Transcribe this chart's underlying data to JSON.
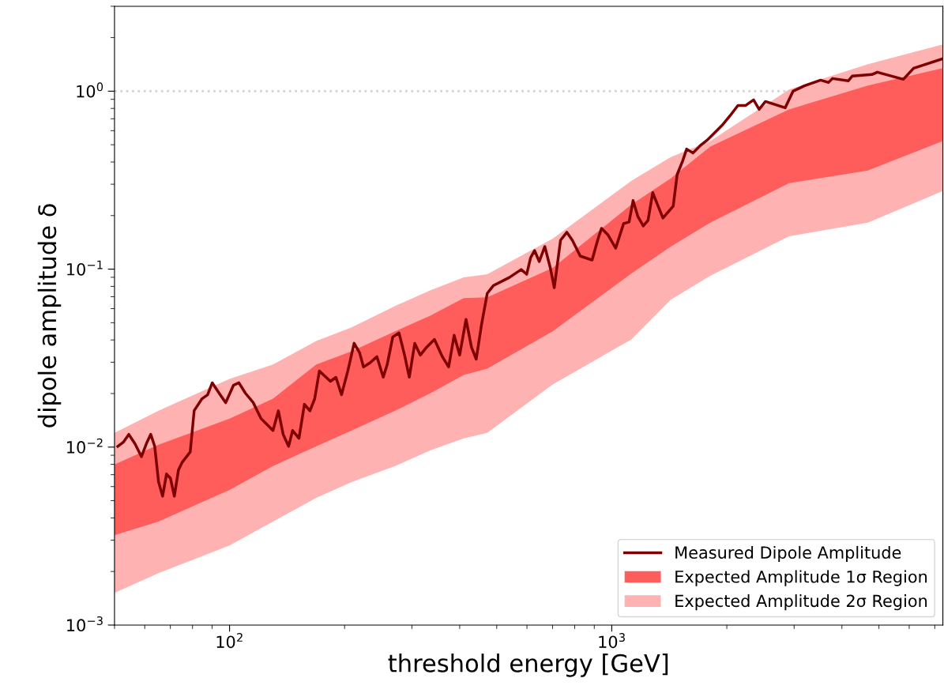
{
  "chart_data": {
    "type": "line",
    "xlabel": "threshold energy [GeV]",
    "ylabel": "dipole amplitude δ",
    "log": "xy",
    "xlim": [
      50,
      7350
    ],
    "ylim": [
      0.001,
      3
    ],
    "xticks": [
      {
        "value": 100,
        "label": "10$^{2}$"
      },
      {
        "value": 1000,
        "label": "10$^{3}$"
      }
    ],
    "yticks": [
      {
        "value": 0.001,
        "label": "10$^{−3}$"
      },
      {
        "value": 0.01,
        "label": "10$^{−2}$"
      },
      {
        "value": 0.1,
        "label": "10$^{−1}$"
      },
      {
        "value": 1,
        "label": "10$^{0}$"
      }
    ],
    "grid": false,
    "legend": "bottom right",
    "ref_lines": [
      {
        "axis": "y",
        "value": 1,
        "label": null,
        "color": "#d3d3d3",
        "line_style": "dotted"
      }
    ],
    "series": [
      {
        "name": "Measured Dipole Amplitude",
        "type": "line",
        "color": "#7f0000",
        "line_style": "solid",
        "x": [
          51,
          52.7,
          54.5,
          56.6,
          58.8,
          60.8,
          62.2,
          63.7,
          65.2,
          66.8,
          68.4,
          70.0,
          71.7,
          73.5,
          75.2,
          78.9,
          80.8,
          84.7,
          87.6,
          90.1,
          94.5,
          97.7,
          102.4,
          105.8,
          110,
          115.3,
          120.9,
          129.9,
          134.2,
          138.1,
          142.7,
          146.2,
          151.9,
          157,
          162.3,
          167,
          171.8,
          183.6,
          189.8,
          196.3,
          203.9,
          211.8,
          218.9,
          224.1,
          232.8,
          243,
          252.4,
          258.5,
          267.3,
          277.6,
          287,
          295.3,
          305.2,
          315.5,
          327.7,
          343.6,
          360.4,
          374.3,
          386.9,
          400,
          415.6,
          429.5,
          441.9,
          456.8,
          472.3,
          490.6,
          539.5,
          579.4,
          598.9,
          613.3,
          628,
          646.2,
          668,
          690.6,
          707.2,
          734.5,
          762.9,
          788.6,
          827,
          888.4,
          918.3,
          940.3,
          976.5,
          1024,
          1074,
          1110,
          1137,
          1170,
          1209,
          1244,
          1280,
          1317,
          1361,
          1448,
          1483,
          1533,
          1570,
          1631,
          1710,
          1784,
          1854,
          1944,
          2039,
          2138,
          2241,
          2350,
          2430,
          2524,
          2842,
          2980,
          3200,
          3519,
          3690,
          3779,
          4156,
          4256,
          4791,
          4953,
          5793,
          6161,
          7345
        ],
        "values": [
          0.0101,
          0.01064,
          0.01179,
          0.01042,
          0.00884,
          0.01064,
          0.0118,
          0.0101,
          0.00637,
          0.0053,
          0.00706,
          0.0067,
          0.0053,
          0.00743,
          0.00823,
          0.0094,
          0.01603,
          0.0187,
          0.01968,
          0.02296,
          0.0197,
          0.01777,
          0.02226,
          0.023,
          0.0201,
          0.0178,
          0.01447,
          0.0124,
          0.016,
          0.0118,
          0.0101,
          0.0124,
          0.0112,
          0.0174,
          0.016,
          0.0187,
          0.02678,
          0.02343,
          0.02466,
          0.0197,
          0.0268,
          0.03834,
          0.0339,
          0.0282,
          0.0297,
          0.0322,
          0.0247,
          0.0291,
          0.0416,
          0.0438,
          0.0329,
          0.0247,
          0.0383,
          0.0329,
          0.0364,
          0.0403,
          0.0322,
          0.0282,
          0.0425,
          0.0329,
          0.0522,
          0.0364,
          0.0312,
          0.0495,
          0.0731,
          0.081,
          0.0898,
          0.0995,
          0.0936,
          0.116,
          0.1272,
          0.1103,
          0.134,
          0.1016,
          0.0786,
          0.1454,
          0.1611,
          0.1454,
          0.1185,
          0.1125,
          0.1454,
          0.1696,
          0.1562,
          0.1312,
          0.1804,
          0.1841,
          0.2428,
          0.1978,
          0.1749,
          0.1879,
          0.2691,
          0.2307,
          0.1938,
          0.2261,
          0.3405,
          0.4055,
          0.4729,
          0.4494,
          0.498,
          0.535,
          0.5806,
          0.6434,
          0.7277,
          0.8315,
          0.8315,
          0.8934,
          0.7899,
          0.8752,
          0.8061,
          1.0,
          1.075,
          1.154,
          1.119,
          1.178,
          1.143,
          1.215,
          1.24,
          1.279,
          1.166,
          1.346,
          1.523
        ]
      },
      {
        "name": "Expected Amplitude 1σ Region",
        "type": "area",
        "color": "#ff5c5c",
        "x": [
          50,
          65.2,
          100,
          129.9,
          168.6,
          208.7,
          271.0,
          335.7,
          409.8,
          472.3,
          700.6,
          1126,
          1427,
          1810,
          2910,
          4679,
          7345
        ],
        "values": [
          null,
          null,
          null,
          null,
          null,
          null,
          null,
          null,
          null,
          null,
          null,
          null,
          null,
          null,
          null,
          null,
          null
        ],
        "upper": [
          0.00798,
          0.01031,
          0.01447,
          0.0187,
          0.0291,
          0.0346,
          0.0447,
          0.0549,
          0.0688,
          0.0695,
          0.1016,
          0.2307,
          0.3236,
          0.4878,
          0.7899,
          1.075,
          1.346
        ],
        "lower": [
          0.0032,
          0.00382,
          0.00575,
          0.00782,
          0.0101,
          0.0124,
          0.016,
          0.0201,
          0.0254,
          0.0276,
          0.0447,
          0.0945,
          0.134,
          0.1823,
          0.3043,
          0.3585,
          0.524
        ]
      },
      {
        "name": "Expected Amplitude 2σ Region",
        "type": "area",
        "color": "#ffb2b2",
        "x": [
          50,
          65.2,
          100,
          129.9,
          168.6,
          208.7,
          271.0,
          335.7,
          409.8,
          472.3,
          700.6,
          1126,
          1427,
          1810,
          2910,
          4679,
          7345
        ],
        "values": [
          null,
          null,
          null,
          null,
          null,
          null,
          null,
          null,
          null,
          null,
          null,
          null,
          null,
          null,
          null,
          null,
          null
        ],
        "upper": [
          0.01203,
          0.01603,
          0.02416,
          0.0291,
          0.0395,
          0.0471,
          0.0621,
          0.0762,
          0.0898,
          0.0936,
          0.1484,
          0.3139,
          0.4269,
          0.524,
          1.021,
          1.417,
          1.831
        ],
        "lower": [
          0.001516,
          0.00196,
          0.0028,
          0.00382,
          0.00519,
          0.00637,
          0.00782,
          0.0096,
          0.0112,
          0.01203,
          0.0225,
          0.0403,
          0.0674,
          0.0917,
          0.1531,
          0.1823,
          0.2747
        ]
      }
    ]
  }
}
